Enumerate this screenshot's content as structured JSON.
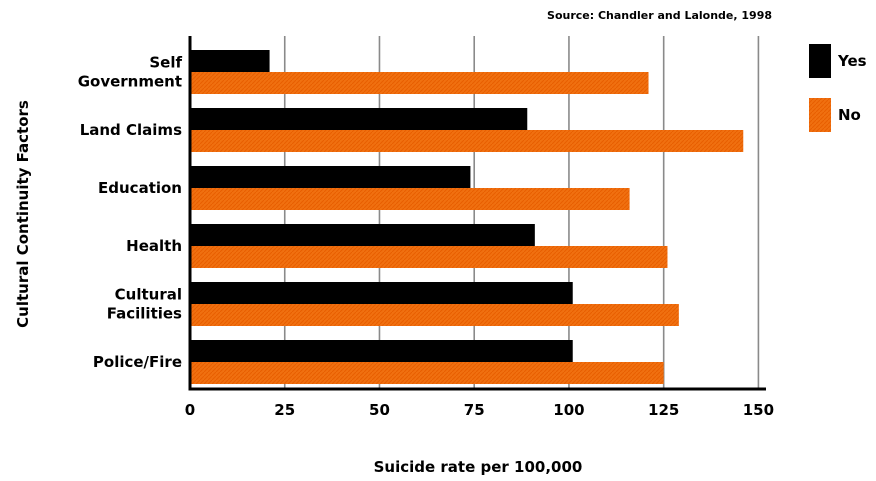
{
  "source": "Source: Chandler and Lalonde, 1998",
  "chart_data": {
    "type": "bar",
    "orientation": "horizontal",
    "categories": [
      [
        "Self",
        "Government"
      ],
      [
        "Land Claims"
      ],
      [
        "Education"
      ],
      [
        "Health"
      ],
      [
        "Cultural",
        "Facilities"
      ],
      [
        "Police/Fire"
      ]
    ],
    "series": [
      {
        "name": "Yes",
        "color": "#000000",
        "values": [
          21,
          89,
          74,
          91,
          101,
          101
        ]
      },
      {
        "name": "No",
        "color": "#f07010",
        "values": [
          121,
          146,
          116,
          126,
          129,
          125
        ]
      }
    ],
    "xlabel": "Suicide rate per 100,000",
    "ylabel": "Cultural Continuity Factors",
    "xlim": [
      0,
      152
    ],
    "xticks": [
      0,
      25,
      50,
      75,
      100,
      125,
      150
    ],
    "grid": true,
    "legend_position": "right"
  }
}
